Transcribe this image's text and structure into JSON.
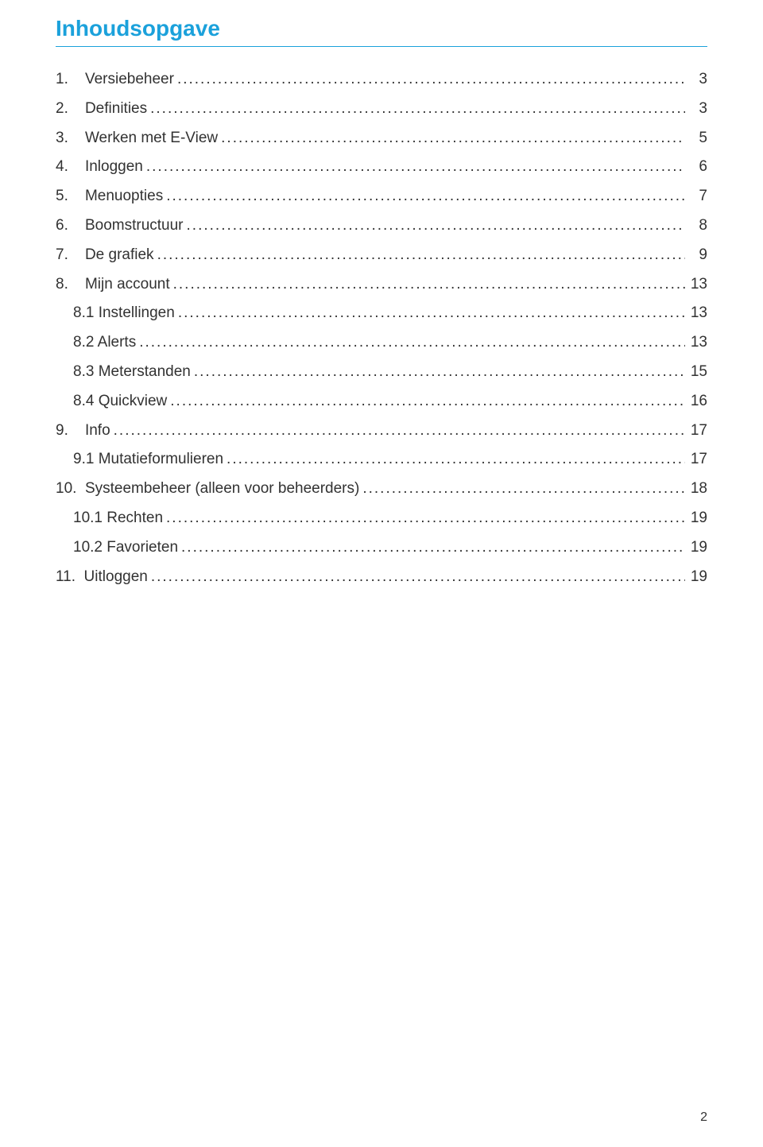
{
  "title": "Inhoudsopgave",
  "title_color": "#1ba1db",
  "underline_color": "#1ba1db",
  "text_color": "#323232",
  "dot_color": "#323232",
  "page_number": "2",
  "entries": [
    {
      "indent": 0,
      "label": "1.    Versiebeheer",
      "page": "3"
    },
    {
      "indent": 0,
      "label": "2.    Definities",
      "page": "3"
    },
    {
      "indent": 0,
      "label": "3.    Werken met E-View",
      "page": "5"
    },
    {
      "indent": 0,
      "label": "4.    Inloggen",
      "page": "6"
    },
    {
      "indent": 0,
      "label": "5.    Menuopties",
      "page": "7"
    },
    {
      "indent": 0,
      "label": "6.    Boomstructuur",
      "page": "8"
    },
    {
      "indent": 0,
      "label": "7.    De grafiek",
      "page": "9"
    },
    {
      "indent": 0,
      "label": "8.    Mijn account",
      "page": "13"
    },
    {
      "indent": 1,
      "label": "8.1 Instellingen",
      "page": "13"
    },
    {
      "indent": 1,
      "label": "8.2 Alerts",
      "page": "13"
    },
    {
      "indent": 1,
      "label": "8.3 Meterstanden",
      "page": "15"
    },
    {
      "indent": 1,
      "label": "8.4 Quickview",
      "page": "16"
    },
    {
      "indent": 0,
      "label": "9.    Info",
      "page": "17"
    },
    {
      "indent": 1,
      "label": "9.1 Mutatieformulieren",
      "page": "17"
    },
    {
      "indent": 0,
      "label": "10.  Systeembeheer (alleen voor beheerders)",
      "page": "18"
    },
    {
      "indent": 1,
      "label": "10.1 Rechten",
      "page": "19"
    },
    {
      "indent": 1,
      "label": "10.2 Favorieten",
      "page": "19"
    },
    {
      "indent": 0,
      "label": "11.  Uitloggen",
      "page": "19"
    }
  ]
}
